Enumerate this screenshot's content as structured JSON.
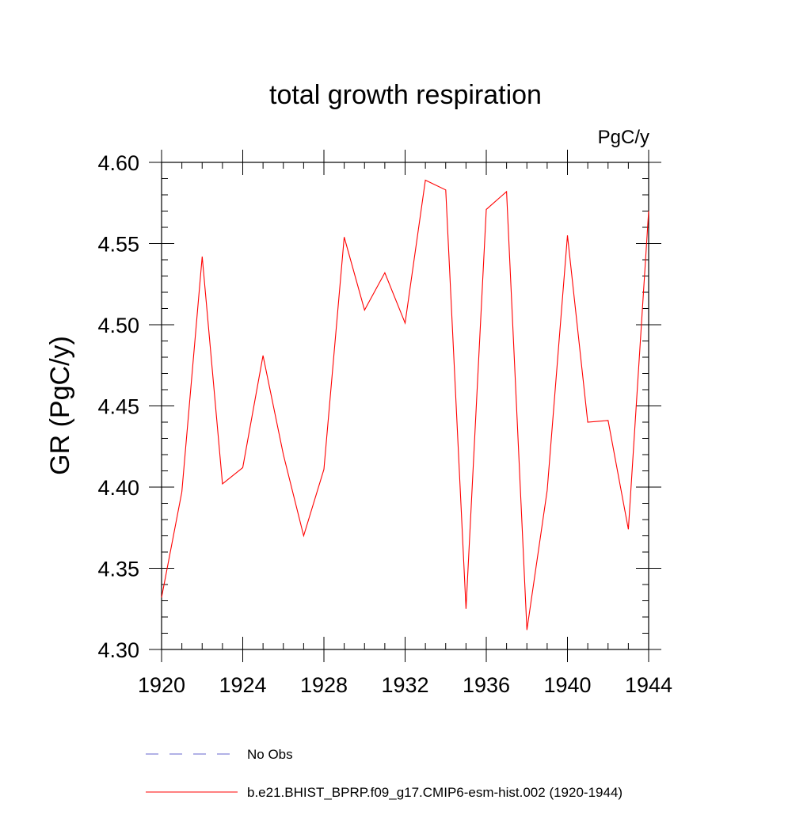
{
  "chart_data": {
    "type": "line",
    "title": "total growth respiration",
    "units_label": "PgC/y",
    "ylabel": "GR  (PgC/y)",
    "xlabel": "",
    "xlim": [
      1920,
      1944
    ],
    "ylim": [
      4.3,
      4.6
    ],
    "x_ticks": [
      1920,
      1924,
      1928,
      1932,
      1936,
      1940,
      1944
    ],
    "x_tick_labels": [
      "1920",
      "1924",
      "1928",
      "1932",
      "1936",
      "1940",
      "1944"
    ],
    "y_ticks": [
      4.3,
      4.35,
      4.4,
      4.45,
      4.5,
      4.55,
      4.6
    ],
    "y_tick_labels": [
      "4.30",
      "4.35",
      "4.40",
      "4.45",
      "4.50",
      "4.55",
      "4.60"
    ],
    "grid": false,
    "legend_position": "bottom",
    "series": [
      {
        "name": "b.e21.BHIST_BPRP.f09_g17.CMIP6-esm-hist.002 (1920-1944)",
        "color": "#ff0000",
        "line_style": "solid",
        "x": [
          1920,
          1921,
          1922,
          1923,
          1924,
          1925,
          1926,
          1927,
          1928,
          1929,
          1930,
          1931,
          1932,
          1933,
          1934,
          1935,
          1936,
          1937,
          1938,
          1939,
          1940,
          1941,
          1942,
          1943,
          1944
        ],
        "values": [
          4.332,
          4.397,
          4.542,
          4.402,
          4.412,
          4.481,
          4.42,
          4.37,
          4.411,
          4.554,
          4.509,
          4.532,
          4.501,
          4.589,
          4.583,
          4.325,
          4.571,
          4.582,
          4.312,
          4.398,
          4.555,
          4.44,
          4.441,
          4.374,
          4.57
        ]
      }
    ],
    "legend": [
      {
        "label": "No Obs",
        "color": "#6666cc",
        "line_style": "dashed"
      },
      {
        "label": "b.e21.BHIST_BPRP.f09_g17.CMIP6-esm-hist.002 (1920-1944)",
        "color": "#ff0000",
        "line_style": "solid"
      }
    ]
  }
}
